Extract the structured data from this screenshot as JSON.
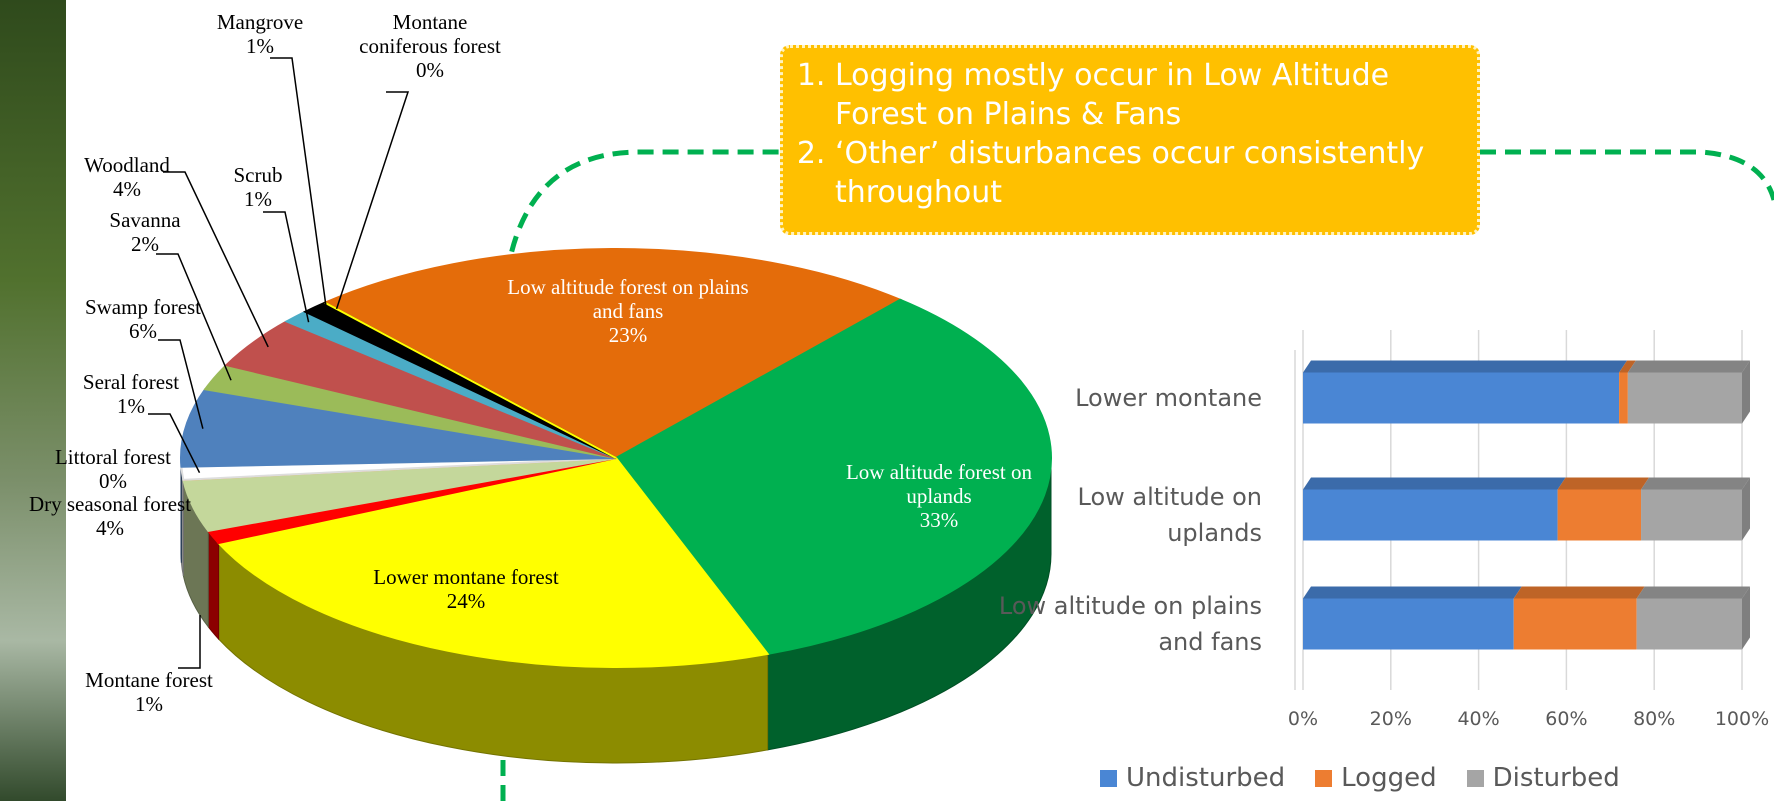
{
  "chart_data": [
    {
      "type": "pie",
      "categories": [
        "Low altitude forest on plains and fans",
        "Low altitude forest on uplands",
        "Lower montane forest",
        "Montane forest",
        "Dry seasonal forest",
        "Littoral forest",
        "Seral forest",
        "Swamp forest",
        "Savanna",
        "Woodland",
        "Scrub",
        "Mangrove",
        "Montane coniferous forest"
      ],
      "values": [
        23,
        33,
        24,
        1,
        4,
        0,
        1,
        6,
        2,
        4,
        1,
        1,
        0
      ],
      "value_labels": [
        "23%",
        "33%",
        "24%",
        "1%",
        "4%",
        "0%",
        "1%",
        "6%",
        "2%",
        "4%",
        "1%",
        "1%",
        "0%"
      ],
      "colors": [
        "#e46c0a",
        "#00b050",
        "#ffff00",
        "#ff0000",
        "#c4d79b",
        "#f79646",
        "#ffffff",
        "#4f81bd",
        "#9bbb59",
        "#c0504d",
        "#4bacc6",
        "#000000",
        "#ffff00"
      ]
    },
    {
      "type": "bar",
      "orientation": "horizontal",
      "stacked": true,
      "categories": [
        "Lower montane",
        "Low altitude on uplands",
        "Low altitude on plains and fans"
      ],
      "series": [
        {
          "name": "Undisturbed",
          "color": "#4a86d4",
          "values": [
            72,
            58,
            48
          ]
        },
        {
          "name": "Logged",
          "color": "#ed7d31",
          "values": [
            2,
            19,
            28
          ]
        },
        {
          "name": "Disturbed",
          "color": "#a5a5a5",
          "values": [
            26,
            23,
            24
          ]
        }
      ],
      "xlim": [
        0,
        100
      ],
      "xticks": [
        {
          "value": 0,
          "label": "0%"
        },
        {
          "value": 20,
          "label": "20%"
        },
        {
          "value": 40,
          "label": "40%"
        },
        {
          "value": 60,
          "label": "60%"
        },
        {
          "value": 80,
          "label": "80%"
        },
        {
          "value": 100,
          "label": "100%"
        }
      ],
      "grid": true,
      "legend": "bottom"
    }
  ],
  "callout": {
    "items": [
      "Logging  mostly occur in Low Altitude Forest on Plains & Fans",
      "‘Other’ disturbances occur consistently throughout"
    ]
  }
}
